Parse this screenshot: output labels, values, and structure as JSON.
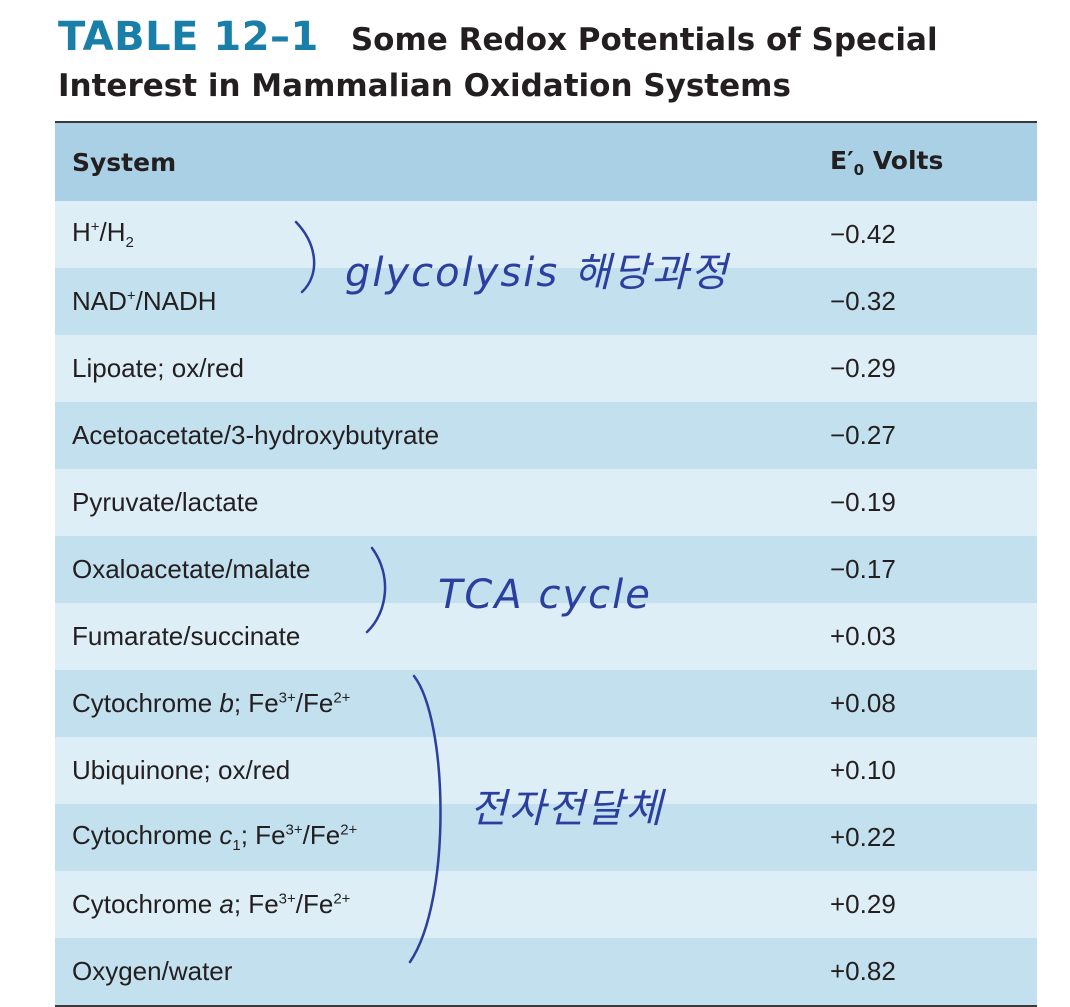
{
  "title": {
    "label": "TABLE 12–1",
    "line1": "Some Redox Potentials of Special",
    "line2": "Interest in Mammalian Oxidation Systems"
  },
  "table": {
    "headers": {
      "system": "System",
      "volts_main": "E′",
      "volts_sub": "0",
      "volts_unit": " Volts"
    },
    "rows": [
      {
        "parts": [
          {
            "t": "H"
          },
          {
            "sup": "+"
          },
          {
            "t": "/H"
          },
          {
            "sub": "2"
          }
        ],
        "volts": "−0.42"
      },
      {
        "parts": [
          {
            "t": "NAD"
          },
          {
            "sup": "+"
          },
          {
            "t": "/NADH"
          }
        ],
        "volts": "−0.32"
      },
      {
        "parts": [
          {
            "t": "Lipoate; ox/red"
          }
        ],
        "volts": "−0.29"
      },
      {
        "parts": [
          {
            "t": "Acetoacetate/3-hydroxybutyrate"
          }
        ],
        "volts": "−0.27"
      },
      {
        "parts": [
          {
            "t": "Pyruvate/lactate"
          }
        ],
        "volts": "−0.19"
      },
      {
        "parts": [
          {
            "t": "Oxaloacetate/malate"
          }
        ],
        "volts": "−0.17"
      },
      {
        "parts": [
          {
            "t": "Fumarate/succinate"
          }
        ],
        "volts": "+0.03"
      },
      {
        "parts": [
          {
            "t": "Cytochrome "
          },
          {
            "i": "b"
          },
          {
            "t": "; Fe"
          },
          {
            "sup": "3+"
          },
          {
            "t": "/Fe"
          },
          {
            "sup": "2+"
          }
        ],
        "volts": "+0.08"
      },
      {
        "parts": [
          {
            "t": "Ubiquinone; ox/red"
          }
        ],
        "volts": "+0.10"
      },
      {
        "parts": [
          {
            "t": "Cytochrome "
          },
          {
            "i": "c"
          },
          {
            "sub": "1"
          },
          {
            "t": "; Fe"
          },
          {
            "sup": "3+"
          },
          {
            "t": "/Fe"
          },
          {
            "sup": "2+"
          }
        ],
        "volts": "+0.22"
      },
      {
        "parts": [
          {
            "t": "Cytochrome "
          },
          {
            "i": "a"
          },
          {
            "t": "; Fe"
          },
          {
            "sup": "3+"
          },
          {
            "t": "/Fe"
          },
          {
            "sup": "2+"
          }
        ],
        "volts": "+0.29"
      },
      {
        "parts": [
          {
            "t": "Oxygen/water"
          }
        ],
        "volts": "+0.82"
      }
    ]
  },
  "annotations": {
    "glycolysis": "glycolysis 해당과정",
    "tca": "TCA cycle",
    "etc": "전자전달체",
    "ink_color": "#2b3f9e"
  }
}
